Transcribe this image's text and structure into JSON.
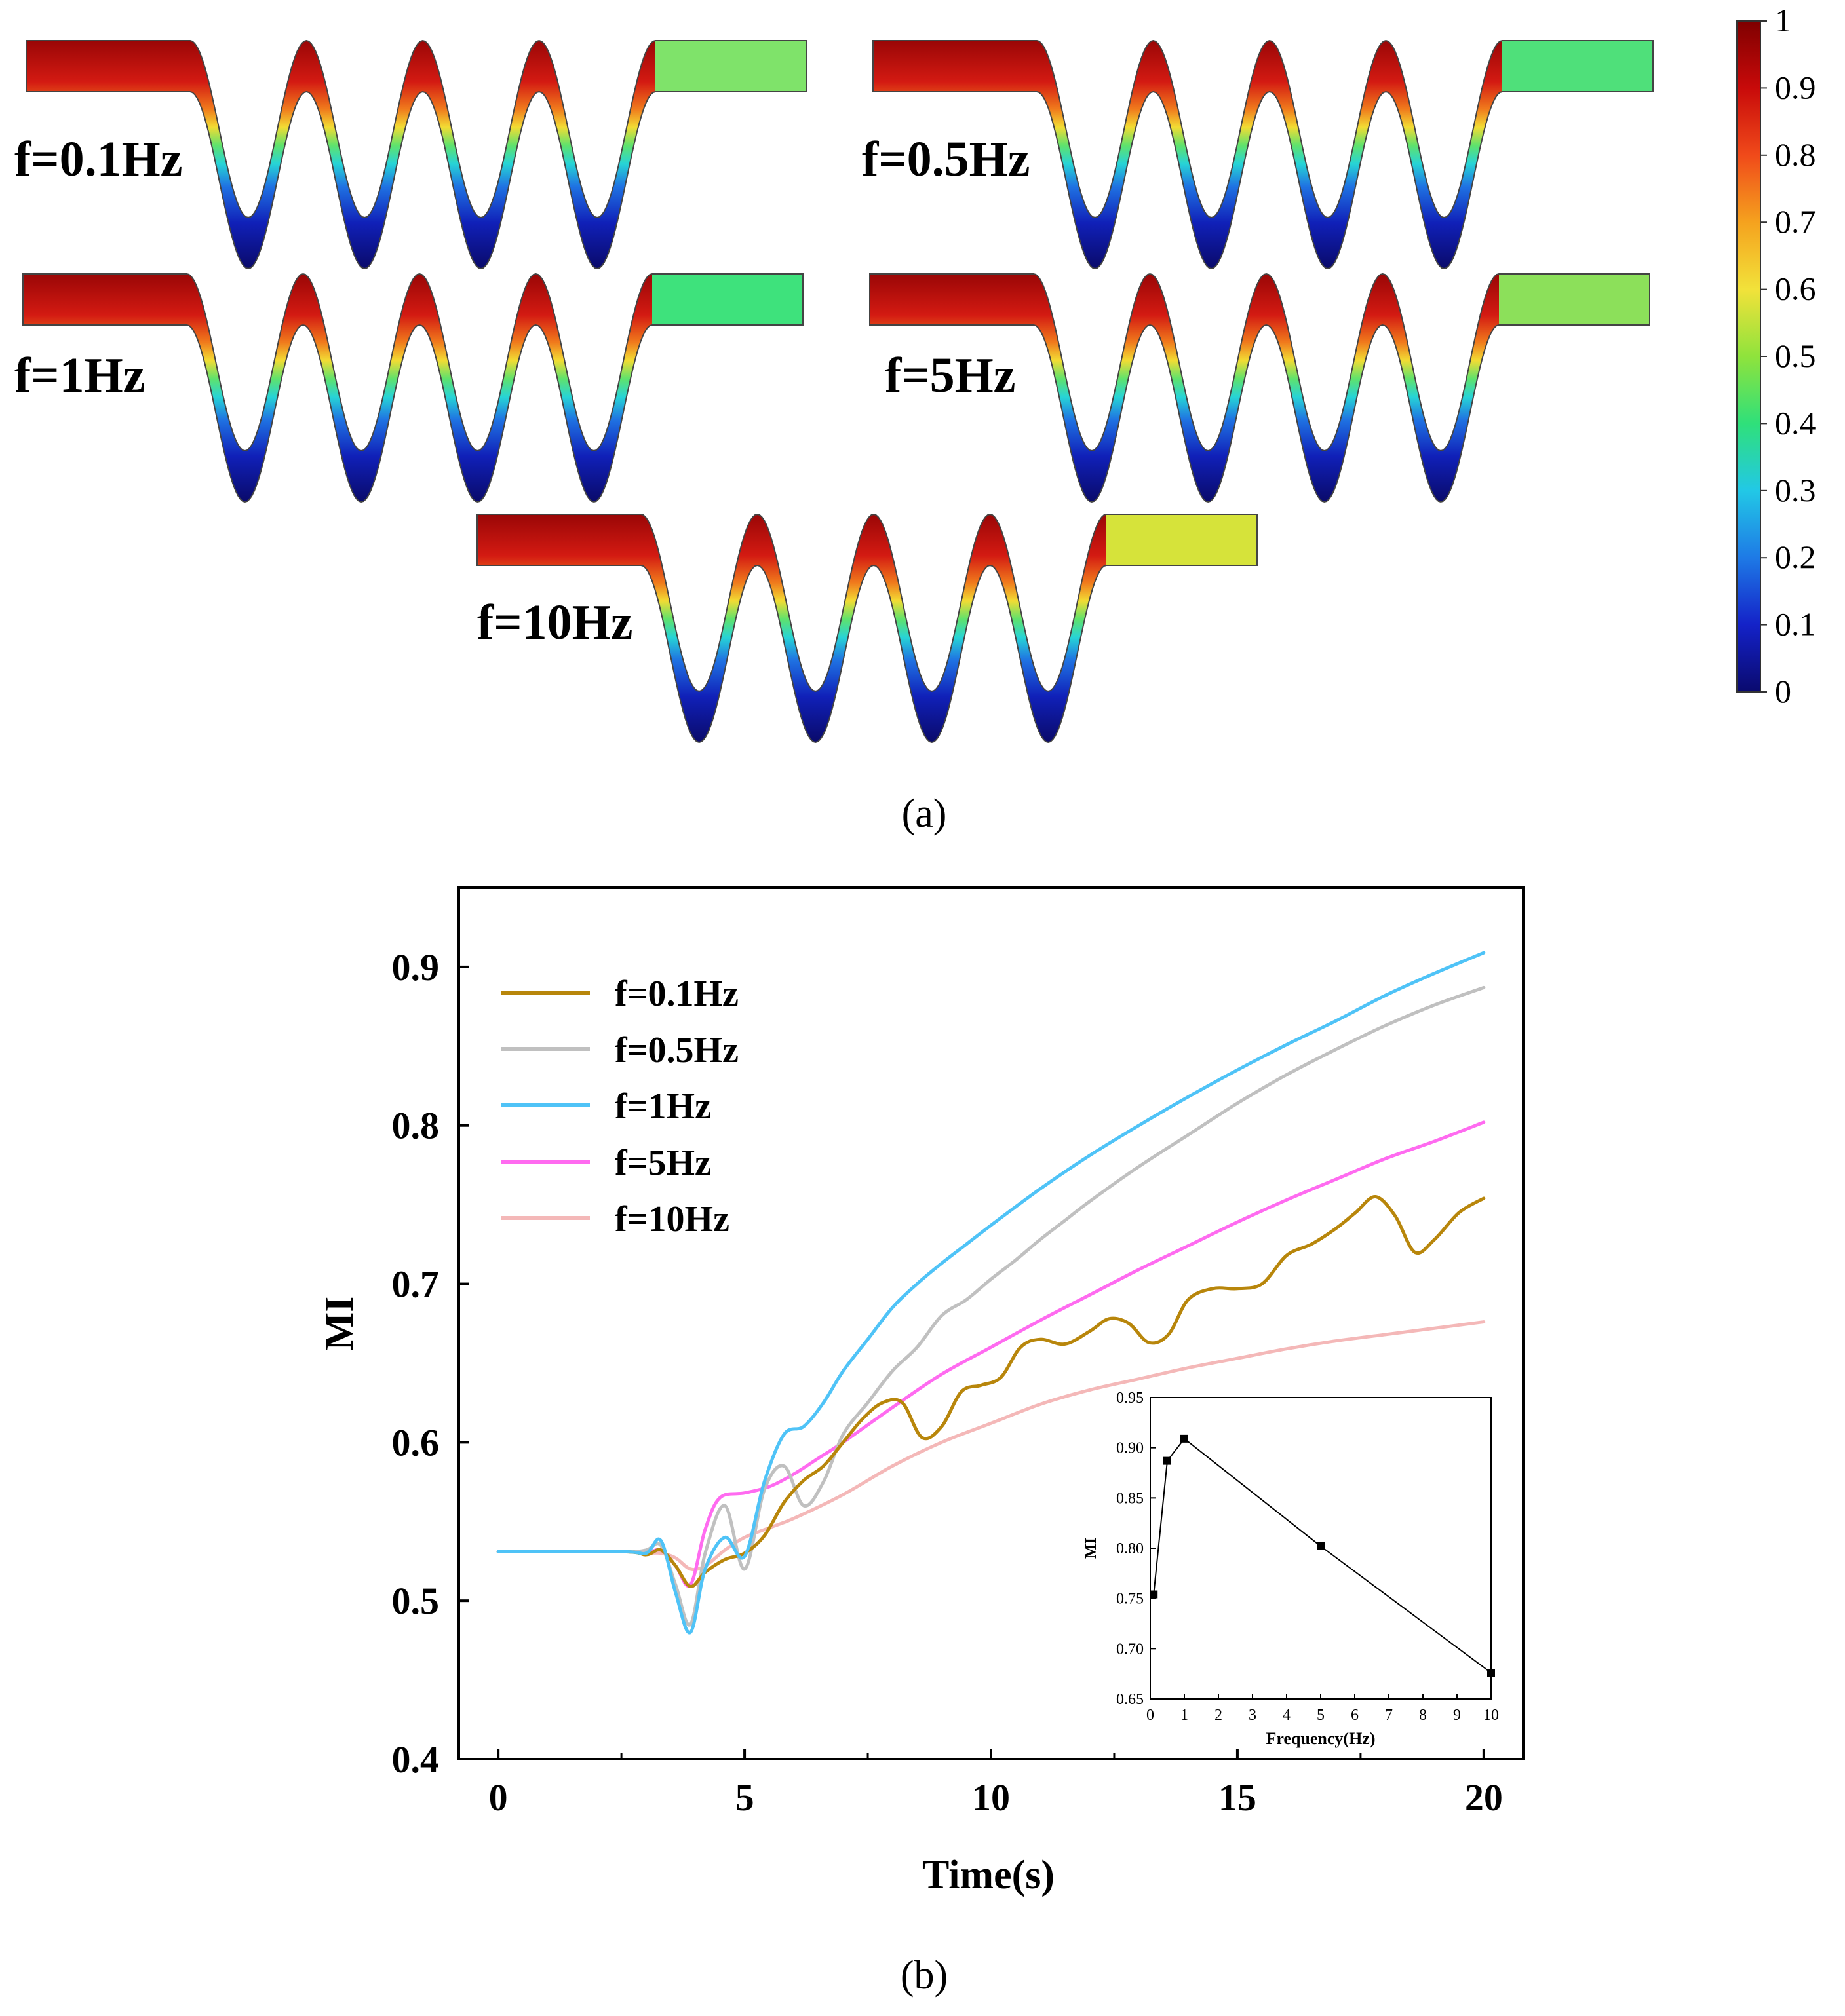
{
  "panel_a": {
    "caption": "(a)",
    "contours": [
      {
        "label": "f=0.1Hz",
        "tip_colors": [
          "#b40f0a",
          "#d7261b",
          "#e07a1a",
          "#f2c41c"
        ],
        "outlet_color": "#7fe36a"
      },
      {
        "label": "f=0.5Hz",
        "tip_colors": [
          "#b40f0a",
          "#e8311a",
          "#e8311a",
          "#e8311a"
        ],
        "outlet_color": "#4fe07a"
      },
      {
        "label": "f=1Hz",
        "tip_colors": [
          "#b40f0a",
          "#e8311a",
          "#f0a21e",
          "#f0a21e"
        ],
        "outlet_color": "#3ee27c"
      },
      {
        "label": "f=5Hz",
        "tip_colors": [
          "#b40f0a",
          "#d7261b",
          "#e8311a",
          "#e8311a"
        ],
        "outlet_color": "#8ce05a"
      },
      {
        "label": "f=10Hz",
        "tip_colors": [
          "#b40f0a",
          "#c81c12",
          "#c81c12",
          "#c81c12"
        ],
        "outlet_color": "#d6e33a"
      }
    ],
    "colorbar": {
      "ticks": [
        "1",
        "0.9",
        "0.8",
        "0.7",
        "0.6",
        "0.5",
        "0.4",
        "0.3",
        "0.2",
        "0.1",
        "0"
      ],
      "colors": [
        "#7f0000",
        "#c80a0a",
        "#f04a1a",
        "#f5a21e",
        "#f2e23a",
        "#8fe33c",
        "#2fe07a",
        "#22c8e6",
        "#1e7ae6",
        "#1422c8",
        "#0a0a6e"
      ]
    }
  },
  "panel_b": {
    "caption": "(b)",
    "chart_data": [
      {
        "type": "line",
        "title": "",
        "xlabel": "Time(s)",
        "ylabel": "MI",
        "xlim": [
          -0.8,
          20.8
        ],
        "ylim": [
          0.4,
          0.95
        ],
        "xticks": [
          "0",
          "5",
          "10",
          "15",
          "20"
        ],
        "yticks": [
          "0.4",
          "0.5",
          "0.6",
          "0.7",
          "0.8",
          "0.9"
        ],
        "legend_position": "top-left",
        "series": [
          {
            "name": "f=0.1Hz",
            "color": "#b8860b",
            "x": [
              0,
              2.5,
              3,
              3.3,
              3.6,
              3.9,
              4.2,
              4.6,
              5,
              5.4,
              5.8,
              6.2,
              6.6,
              7,
              7.4,
              7.8,
              8.2,
              8.6,
              9,
              9.4,
              9.8,
              10.2,
              10.6,
              11,
              11.5,
              12,
              12.4,
              12.8,
              13.2,
              13.6,
              14,
              14.5,
              15,
              15.5,
              16,
              16.5,
              17,
              17.4,
              17.8,
              18.2,
              18.6,
              19,
              19.5,
              20
            ],
            "y": [
              0.531,
              0.531,
              0.529,
              0.532,
              0.522,
              0.509,
              0.518,
              0.526,
              0.53,
              0.541,
              0.562,
              0.576,
              0.585,
              0.6,
              0.615,
              0.625,
              0.625,
              0.603,
              0.61,
              0.632,
              0.636,
              0.641,
              0.66,
              0.665,
              0.662,
              0.67,
              0.678,
              0.675,
              0.663,
              0.668,
              0.69,
              0.697,
              0.697,
              0.7,
              0.718,
              0.725,
              0.735,
              0.745,
              0.755,
              0.743,
              0.72,
              0.728,
              0.745,
              0.754
            ]
          },
          {
            "name": "f=0.5Hz",
            "color": "#c0c0c0",
            "x": [
              0,
              2.5,
              3,
              3.3,
              3.6,
              3.9,
              4.2,
              4.6,
              5,
              5.4,
              5.8,
              6.2,
              6.6,
              7,
              7.5,
              8,
              8.5,
              9,
              9.5,
              10,
              10.5,
              11,
              11.5,
              12,
              13,
              14,
              15,
              16,
              17,
              18,
              19,
              20
            ],
            "y": [
              0.531,
              0.531,
              0.532,
              0.535,
              0.51,
              0.485,
              0.53,
              0.56,
              0.52,
              0.57,
              0.585,
              0.56,
              0.575,
              0.605,
              0.625,
              0.645,
              0.66,
              0.68,
              0.69,
              0.703,
              0.715,
              0.728,
              0.74,
              0.752,
              0.774,
              0.794,
              0.814,
              0.832,
              0.848,
              0.863,
              0.876,
              0.887
            ]
          },
          {
            "name": "f=1Hz",
            "color": "#4fc3f7",
            "x": [
              0,
              2.5,
              3,
              3.3,
              3.6,
              3.9,
              4.2,
              4.6,
              5,
              5.4,
              5.8,
              6.2,
              6.6,
              7,
              7.5,
              8,
              8.5,
              9,
              9.5,
              10,
              11,
              12,
              13,
              14,
              15,
              16,
              17,
              18,
              19,
              20
            ],
            "y": [
              0.531,
              0.531,
              0.53,
              0.538,
              0.505,
              0.48,
              0.52,
              0.54,
              0.528,
              0.575,
              0.605,
              0.61,
              0.625,
              0.645,
              0.665,
              0.685,
              0.7,
              0.713,
              0.725,
              0.737,
              0.76,
              0.781,
              0.8,
              0.818,
              0.835,
              0.851,
              0.866,
              0.882,
              0.896,
              0.909
            ]
          },
          {
            "name": "f=5Hz",
            "color": "#ff6bf0",
            "x": [
              0,
              2.5,
              3,
              3.3,
              3.6,
              3.9,
              4.2,
              4.5,
              5,
              5.5,
              6,
              6.5,
              7,
              8,
              9,
              10,
              11,
              12,
              13,
              14,
              15,
              16,
              17,
              18,
              19,
              20
            ],
            "y": [
              0.531,
              0.531,
              0.53,
              0.532,
              0.522,
              0.51,
              0.545,
              0.565,
              0.568,
              0.572,
              0.58,
              0.59,
              0.6,
              0.622,
              0.643,
              0.66,
              0.677,
              0.693,
              0.709,
              0.724,
              0.739,
              0.753,
              0.766,
              0.779,
              0.79,
              0.802
            ]
          },
          {
            "name": "f=10Hz",
            "color": "#f4b8b8",
            "x": [
              0,
              2.5,
              3,
              3.3,
              3.6,
              3.9,
              4.2,
              4.6,
              5,
              5.5,
              6,
              7,
              8,
              9,
              10,
              11,
              12,
              13,
              14,
              15,
              16,
              17,
              18,
              19,
              20
            ],
            "y": [
              0.531,
              0.531,
              0.53,
              0.53,
              0.527,
              0.52,
              0.522,
              0.532,
              0.54,
              0.546,
              0.552,
              0.567,
              0.585,
              0.6,
              0.612,
              0.624,
              0.633,
              0.64,
              0.647,
              0.653,
              0.659,
              0.664,
              0.668,
              0.672,
              0.676
            ]
          }
        ]
      },
      {
        "type": "line",
        "title": "",
        "xlabel": "Frequency(Hz)",
        "ylabel": "MI",
        "xlim": [
          0,
          10
        ],
        "ylim": [
          0.65,
          0.95
        ],
        "xticks": [
          "0",
          "1",
          "2",
          "3",
          "4",
          "5",
          "6",
          "7",
          "8",
          "9",
          "10"
        ],
        "yticks": [
          "0.65",
          "0.70",
          "0.75",
          "0.80",
          "0.85",
          "0.90",
          "0.95"
        ],
        "series": [
          {
            "name": "MI vs frequency",
            "color": "#000000",
            "x": [
              0.1,
              0.5,
              1,
              5,
              10
            ],
            "y": [
              0.754,
              0.887,
              0.909,
              0.802,
              0.676
            ]
          }
        ]
      }
    ]
  }
}
